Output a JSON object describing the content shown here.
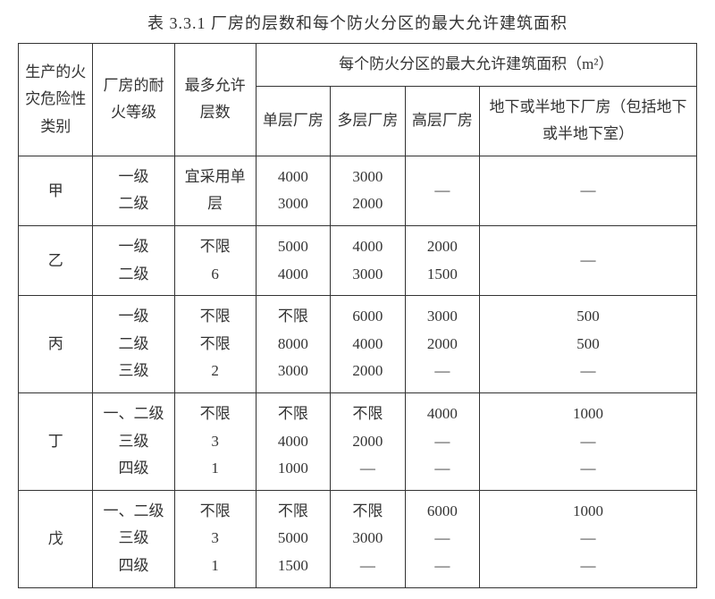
{
  "caption": "表 3.3.1  厂房的层数和每个防火分区的最大允许建筑面积",
  "headers": {
    "category": "生产的火灾危险性类别",
    "fire_rating": "厂房的耐火等级",
    "max_floors": "最多允许层数",
    "area_group": "每个防火分区的最大允许建筑面积（m²）",
    "single": "单层厂房",
    "multi": "多层厂房",
    "high": "高层厂房",
    "underground": "地下或半地下厂房（包括地下或半地下室）"
  },
  "rows": [
    {
      "category": "甲",
      "fire_rating": [
        "一级",
        "二级"
      ],
      "max_floors": [
        "宜采用单层"
      ],
      "single": [
        "4000",
        "3000"
      ],
      "multi": [
        "3000",
        "2000"
      ],
      "high": [
        "—"
      ],
      "underground": [
        "—"
      ]
    },
    {
      "category": "乙",
      "fire_rating": [
        "一级",
        "二级"
      ],
      "max_floors": [
        "不限",
        "6"
      ],
      "single": [
        "5000",
        "4000"
      ],
      "multi": [
        "4000",
        "3000"
      ],
      "high": [
        "2000",
        "1500"
      ],
      "underground": [
        "—"
      ]
    },
    {
      "category": "丙",
      "fire_rating": [
        "一级",
        "二级",
        "三级"
      ],
      "max_floors": [
        "不限",
        "不限",
        "2"
      ],
      "single": [
        "不限",
        "8000",
        "3000"
      ],
      "multi": [
        "6000",
        "4000",
        "2000"
      ],
      "high": [
        "3000",
        "2000",
        "—"
      ],
      "underground": [
        "500",
        "500",
        "—"
      ]
    },
    {
      "category": "丁",
      "fire_rating": [
        "一、二级",
        "三级",
        "四级"
      ],
      "max_floors": [
        "不限",
        "3",
        "1"
      ],
      "single": [
        "不限",
        "4000",
        "1000"
      ],
      "multi": [
        "不限",
        "2000",
        "—"
      ],
      "high": [
        "4000",
        "—",
        "—"
      ],
      "underground": [
        "1000",
        "—",
        "—"
      ]
    },
    {
      "category": "戊",
      "fire_rating": [
        "一、二级",
        "三级",
        "四级"
      ],
      "max_floors": [
        "不限",
        "3",
        "1"
      ],
      "single": [
        "不限",
        "5000",
        "1500"
      ],
      "multi": [
        "不限",
        "3000",
        "—"
      ],
      "high": [
        "6000",
        "—",
        "—"
      ],
      "underground": [
        "1000",
        "—",
        "—"
      ]
    }
  ],
  "styling": {
    "border_color": "#333333",
    "text_color": "#333333",
    "background_color": "#ffffff",
    "font_family": "SimSun",
    "caption_fontsize": 18,
    "cell_fontsize": 17,
    "line_height": 1.8
  }
}
